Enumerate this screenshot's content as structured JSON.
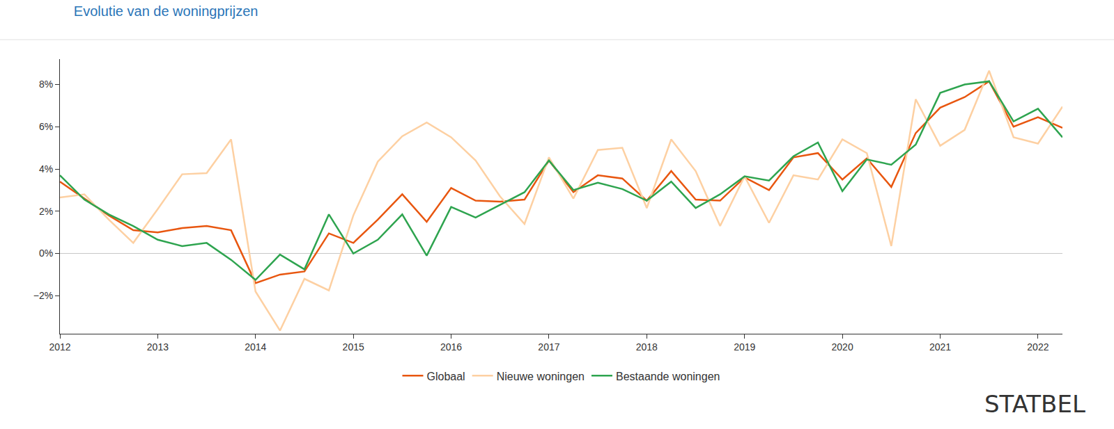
{
  "chart_data": {
    "type": "line",
    "title": "Evolutie van de woningprijzen",
    "x": [
      2012,
      2012.25,
      2012.5,
      2012.75,
      2013,
      2013.25,
      2013.5,
      2013.75,
      2014,
      2014.25,
      2014.5,
      2014.75,
      2015,
      2015.25,
      2015.5,
      2015.75,
      2016,
      2016.25,
      2016.5,
      2016.75,
      2017,
      2017.25,
      2017.5,
      2017.75,
      2018,
      2018.25,
      2018.5,
      2018.75,
      2019,
      2019.25,
      2019.5,
      2019.75,
      2020,
      2020.25,
      2020.5,
      2020.75,
      2021,
      2021.25,
      2021.5,
      2021.75,
      2022,
      2022.25
    ],
    "series": [
      {
        "name": "Globaal",
        "color": "#e8560f",
        "values": [
          3.4,
          2.6,
          1.8,
          1.1,
          1.0,
          1.2,
          1.3,
          1.1,
          -1.4,
          -1.0,
          -0.85,
          0.95,
          0.5,
          1.6,
          2.8,
          1.5,
          3.1,
          2.5,
          2.45,
          2.55,
          4.4,
          2.9,
          3.7,
          3.55,
          2.5,
          3.9,
          2.55,
          2.5,
          3.6,
          3.0,
          4.55,
          4.75,
          3.5,
          4.5,
          3.15,
          5.7,
          6.9,
          7.4,
          8.15,
          6.0,
          6.45,
          5.95
        ]
      },
      {
        "name": "Nieuwe woningen",
        "color": "#fdd0a2",
        "values": [
          2.65,
          2.8,
          1.6,
          0.5,
          2.1,
          3.75,
          3.8,
          5.4,
          -1.8,
          -3.65,
          -1.2,
          -1.75,
          1.8,
          4.35,
          5.55,
          6.2,
          5.5,
          4.4,
          2.7,
          1.4,
          4.55,
          2.6,
          4.9,
          5.0,
          2.15,
          5.4,
          3.9,
          1.3,
          3.65,
          1.45,
          3.7,
          3.5,
          5.4,
          4.75,
          0.35,
          7.3,
          5.1,
          5.85,
          8.65,
          5.5,
          5.2,
          6.95
        ]
      },
      {
        "name": "Bestaande woningen",
        "color": "#2ea44f",
        "values": [
          3.7,
          2.55,
          1.85,
          1.3,
          0.65,
          0.35,
          0.5,
          -0.3,
          -1.25,
          -0.05,
          -0.75,
          1.85,
          0.0,
          0.65,
          1.85,
          -0.1,
          2.2,
          1.7,
          2.3,
          2.9,
          4.4,
          3.0,
          3.35,
          3.05,
          2.5,
          3.4,
          2.15,
          2.8,
          3.65,
          3.45,
          4.6,
          5.25,
          2.95,
          4.45,
          4.2,
          5.15,
          7.6,
          8.0,
          8.15,
          6.25,
          6.85,
          5.5
        ]
      }
    ],
    "xlim": [
      2012,
      2022.25
    ],
    "xticks": [
      2012,
      2013,
      2014,
      2015,
      2016,
      2017,
      2018,
      2019,
      2020,
      2021,
      2022
    ],
    "ylim": [
      -3.8,
      9.2
    ],
    "yticks": [
      {
        "value": -2,
        "label": "−2%"
      },
      {
        "value": 0,
        "label": "0%"
      },
      {
        "value": 2,
        "label": "2%"
      },
      {
        "value": 4,
        "label": "4%"
      },
      {
        "value": 6,
        "label": "6%"
      },
      {
        "value": 8,
        "label": "8%"
      }
    ],
    "grid": false,
    "legend": "bottom",
    "annotations": [
      {
        "text": "STATBEL"
      }
    ]
  }
}
